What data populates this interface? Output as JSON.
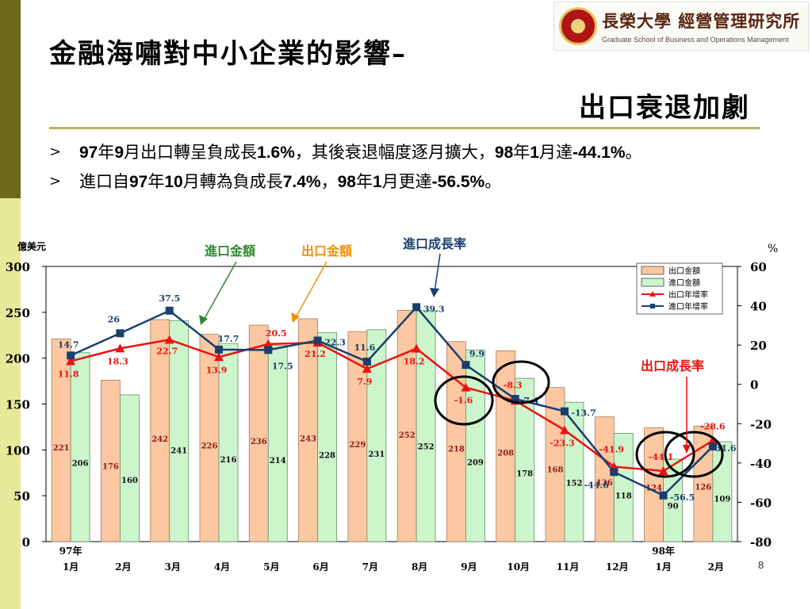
{
  "title": "金融海嘯對中小企業的影響–",
  "subtitle": "出口衰退加劇",
  "logo": {
    "name": "長榮大學 經營管理研究所",
    "subtitle": "Graduate School of Business and Operations Management"
  },
  "bullets": [
    [
      {
        "t": "97",
        "b": true
      },
      {
        "t": "年",
        "b": false
      },
      {
        "t": "9",
        "b": true
      },
      {
        "t": "月出口轉呈負成長",
        "b": false
      },
      {
        "t": "1.6%",
        "b": true
      },
      {
        "t": "，其後衰退幅度逐月擴大，",
        "b": false
      },
      {
        "t": "98",
        "b": true
      },
      {
        "t": "年",
        "b": false
      },
      {
        "t": "1",
        "b": true
      },
      {
        "t": "月達",
        "b": false
      },
      {
        "t": "-44.1%",
        "b": true
      },
      {
        "t": "。",
        "b": false
      }
    ],
    [
      {
        "t": "進口自",
        "b": false
      },
      {
        "t": "97",
        "b": true
      },
      {
        "t": "年",
        "b": false
      },
      {
        "t": "10",
        "b": true
      },
      {
        "t": "月轉為負成長",
        "b": false
      },
      {
        "t": "7.4%",
        "b": true
      },
      {
        "t": "，",
        "b": false
      },
      {
        "t": "98",
        "b": true
      },
      {
        "t": "年",
        "b": false
      },
      {
        "t": "1",
        "b": true
      },
      {
        "t": "月更達",
        "b": false
      },
      {
        "t": "-56.5%",
        "b": true
      },
      {
        "t": "。",
        "b": false
      }
    ]
  ],
  "page_number": "8",
  "colors": {
    "export_bar": "#fbc8a1",
    "import_bar": "#ccf5cc",
    "export_line": "#ee1111",
    "import_line": "#1a3f6f",
    "highlight_circle": "#000000"
  },
  "chart_data": {
    "type": "bar",
    "y_left_label": "億美元",
    "y_right_label": "%",
    "y_left_ticks": [
      "0",
      "50",
      "100",
      "150",
      "200",
      "250",
      "300"
    ],
    "y_right_ticks": [
      "-80",
      "-60",
      "-40",
      "-20",
      "0",
      "20",
      "40",
      "60"
    ],
    "ylim_left": [
      0,
      300
    ],
    "ylim_right": [
      -80,
      60
    ],
    "categories": [
      [
        "97年",
        "1月"
      ],
      [
        "2月"
      ],
      [
        "3月"
      ],
      [
        "4月"
      ],
      [
        "5月"
      ],
      [
        "6月"
      ],
      [
        "7月"
      ],
      [
        "8月"
      ],
      [
        "9月"
      ],
      [
        "10月"
      ],
      [
        "11月"
      ],
      [
        "12月"
      ],
      [
        "98年",
        "1月"
      ],
      [
        "2月"
      ]
    ],
    "series": [
      {
        "name": "出口金額",
        "kind": "bar",
        "axis": "left",
        "values": [
          221,
          176,
          242,
          226,
          236,
          243,
          229,
          252,
          218,
          208,
          168,
          136,
          124,
          126
        ]
      },
      {
        "name": "進口金額",
        "kind": "bar",
        "axis": "left",
        "values": [
          206,
          160,
          241,
          216,
          214,
          228,
          231,
          252,
          209,
          178,
          152,
          118,
          90,
          109
        ]
      },
      {
        "name": "出口年增率",
        "kind": "line",
        "axis": "right",
        "values": [
          11.8,
          18.3,
          22.7,
          13.9,
          20.5,
          21.2,
          7.9,
          18.2,
          -1.6,
          -8.3,
          -23.3,
          -41.9,
          -44.1,
          -28.6
        ]
      },
      {
        "name": "進口年增率",
        "kind": "line",
        "axis": "right",
        "values": [
          14.7,
          26,
          37.5,
          17.7,
          17.5,
          22.3,
          11.6,
          39.3,
          9.9,
          -7.4,
          -13.7,
          -44.6,
          -56.5,
          -31.6
        ]
      }
    ],
    "annotations": {
      "import_amount": "進口金額",
      "export_amount": "出口金額",
      "import_growth": "進口成長率",
      "export_growth": "出口成長率"
    },
    "highlighted_categories": [
      "9月",
      "10月",
      "98年1月"
    ],
    "grid": false,
    "legend_position": "top-right"
  }
}
